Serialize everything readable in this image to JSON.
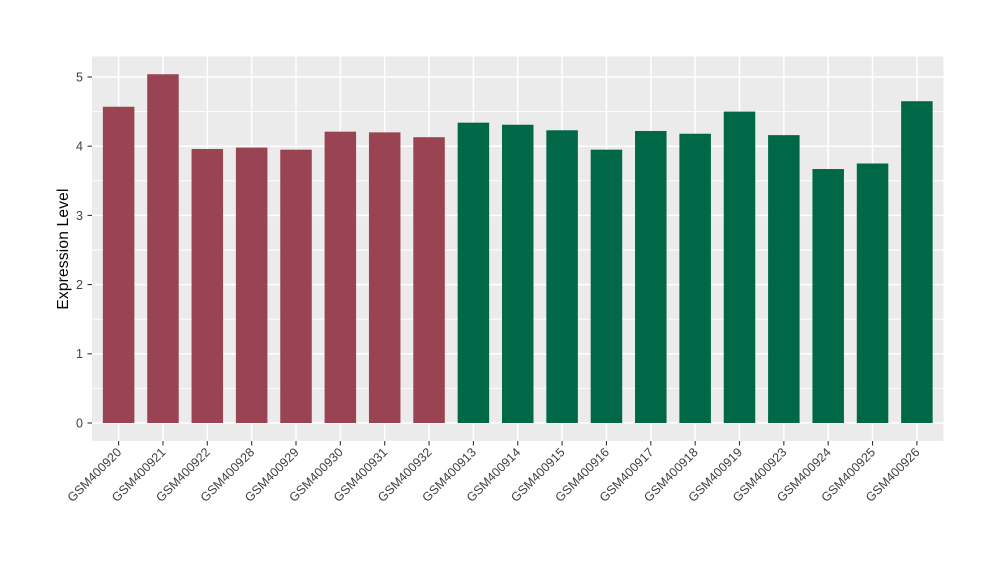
{
  "chart_data": {
    "type": "bar",
    "title": "",
    "xlabel": "",
    "ylabel": "Expression Level",
    "ylim": [
      -0.26,
      5.3
    ],
    "yticks": [
      0,
      1,
      2,
      3,
      4,
      5
    ],
    "yminorticks": [
      0.5,
      1.5,
      2.5,
      3.5,
      4.5
    ],
    "grid": "on",
    "legend_position": "none",
    "panel_background": "#EBEBEB",
    "gridline_color": "#FFFFFF",
    "tick_color": "#333333",
    "axis_text_color": "#404040",
    "categories": [
      "GSM400920",
      "GSM400921",
      "GSM400922",
      "GSM400928",
      "GSM400929",
      "GSM400930",
      "GSM400931",
      "GSM400932",
      "GSM400913",
      "GSM400914",
      "GSM400915",
      "GSM400916",
      "GSM400917",
      "GSM400918",
      "GSM400919",
      "GSM400923",
      "GSM400924",
      "GSM400925",
      "GSM400926"
    ],
    "values": [
      4.57,
      5.04,
      3.96,
      3.98,
      3.95,
      4.21,
      4.2,
      4.13,
      4.34,
      4.31,
      4.23,
      3.95,
      4.22,
      4.18,
      4.5,
      4.16,
      3.67,
      3.75,
      4.65
    ],
    "bar_groups": [
      "maroon",
      "maroon",
      "maroon",
      "maroon",
      "maroon",
      "maroon",
      "maroon",
      "maroon",
      "green",
      "green",
      "green",
      "green",
      "green",
      "green",
      "green",
      "green",
      "green",
      "green",
      "green"
    ],
    "group_colors": {
      "maroon": "#9A4352",
      "green": "#006747"
    }
  }
}
